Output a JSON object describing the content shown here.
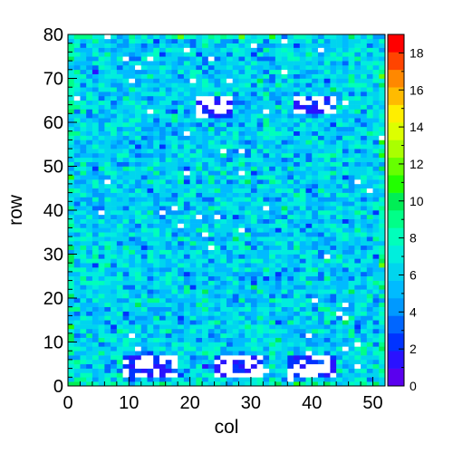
{
  "chart_data": {
    "type": "heatmap",
    "title": "",
    "xlabel": "col",
    "ylabel": "row",
    "xlim": [
      0,
      52
    ],
    "ylim": [
      0,
      80
    ],
    "x_ticks": [
      "0",
      "10",
      "20",
      "30",
      "40",
      "50"
    ],
    "y_ticks": [
      "0",
      "10",
      "20",
      "30",
      "40",
      "50",
      "60",
      "70",
      "80"
    ],
    "colorbar": {
      "min": 0,
      "max": 19,
      "ticks": [
        "0",
        "2",
        "4",
        "6",
        "8",
        "10",
        "12",
        "14",
        "16",
        "18"
      ],
      "colors": [
        "#5a00ee",
        "#2a12ff",
        "#0033ff",
        "#0066ff",
        "#0099ff",
        "#00bbff",
        "#00d5ee",
        "#00eedd",
        "#00ffbb",
        "#00ff88",
        "#00ee55",
        "#22ff00",
        "#66ff00",
        "#aaff00",
        "#ddff00",
        "#ffee00",
        "#ffbb00",
        "#ff8800",
        "#ff4400",
        "#ff0000"
      ]
    },
    "cells": {
      "cols": 52,
      "rows": 80,
      "col_step": 1,
      "row_step": 1,
      "typical_value": 6,
      "spread": 2.5,
      "empty_value_color": "#ffffff",
      "sparse_regions": [
        {
          "x": [
            21,
            27
          ],
          "y": [
            61,
            66
          ]
        },
        {
          "x": [
            37,
            44
          ],
          "y": [
            62,
            66
          ]
        },
        {
          "x": [
            9,
            18
          ],
          "y": [
            2,
            7
          ]
        },
        {
          "x": [
            24,
            32
          ],
          "y": [
            2,
            7
          ]
        },
        {
          "x": [
            36,
            44
          ],
          "y": [
            2,
            7
          ]
        }
      ]
    }
  }
}
